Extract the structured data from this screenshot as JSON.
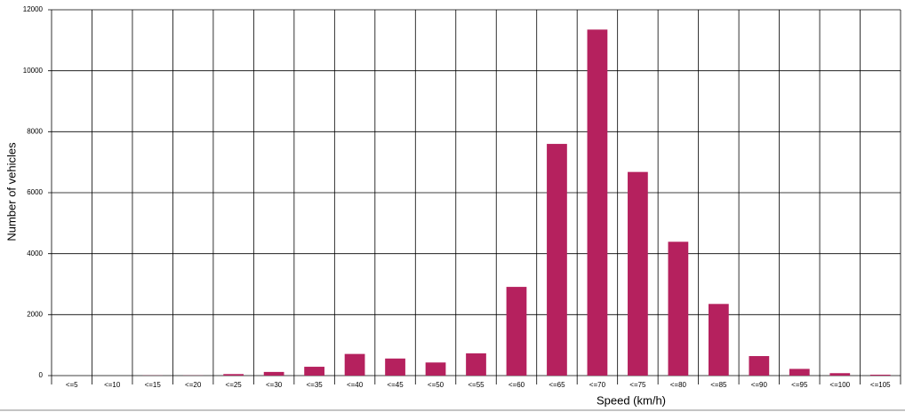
{
  "chart_data": {
    "type": "bar",
    "x_label": "Speed (km/h)",
    "y_label": "Number of vehicles",
    "categories": [
      "<=5",
      "<=10",
      "<=15",
      "<=20",
      "<=25",
      "<=30",
      "<=35",
      "<=40",
      "<=45",
      "<=50",
      "<=55",
      "<=60",
      "<=65",
      "<=70",
      "<=75",
      "<=80",
      "<=85",
      "<=90",
      "<=95",
      "<=100",
      "<=105"
    ],
    "values": [
      0,
      0,
      5,
      5,
      50,
      120,
      290,
      710,
      560,
      430,
      730,
      2910,
      7600,
      11350,
      6680,
      4390,
      2350,
      640,
      220,
      80,
      30
    ],
    "color": "#b5215e",
    "ylim": [
      0,
      12000
    ],
    "yticks": [
      0,
      2000,
      4000,
      6000,
      8000,
      10000,
      12000
    ],
    "grid": true
  }
}
